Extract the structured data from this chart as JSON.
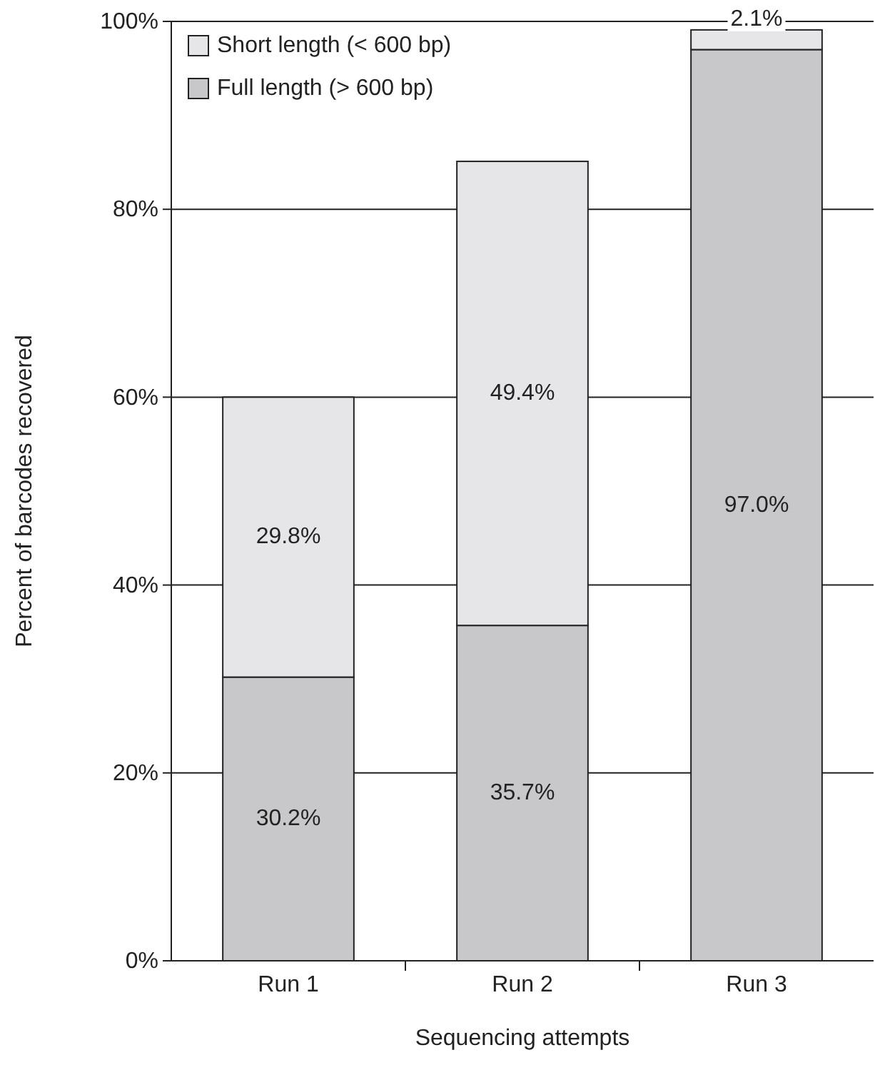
{
  "chart_data": {
    "type": "bar",
    "stacked": true,
    "xlabel": "Sequencing attempts",
    "ylabel": "Percent of barcodes recovered",
    "categories": [
      "Run 1",
      "Run 2",
      "Run 3"
    ],
    "series": [
      {
        "name": "Full length (> 600 bp)",
        "color": "#c8c8ca",
        "values": [
          30.2,
          35.7,
          97.0
        ],
        "value_labels": [
          "30.2%",
          "35.7%",
          "97.0%"
        ]
      },
      {
        "name": "Short length (< 600 bp)",
        "color": "#e6e6e8",
        "values": [
          29.8,
          49.4,
          2.1
        ],
        "value_labels": [
          "29.8%",
          "49.4%",
          "2.1%"
        ]
      }
    ],
    "ylim": [
      0,
      100
    ],
    "yticks": [
      {
        "value": 0,
        "label": "0%"
      },
      {
        "value": 20,
        "label": "20%"
      },
      {
        "value": 40,
        "label": "40%"
      },
      {
        "value": 60,
        "label": "60%"
      },
      {
        "value": 80,
        "label": "80%"
      },
      {
        "value": 100,
        "label": "100%"
      }
    ],
    "grid": "y",
    "legend": "top left"
  }
}
